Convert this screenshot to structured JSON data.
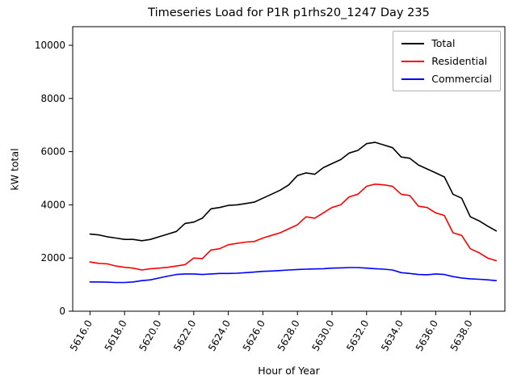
{
  "chart_data": {
    "type": "line",
    "title": "Timeseries Load for P1R p1rhs20_1247  Day 235",
    "xlabel": "Hour of Year",
    "ylabel": "kW total",
    "xlim": [
      5615.0,
      5640.0
    ],
    "ylim": [
      0,
      10700
    ],
    "grid": false,
    "legend_position": "upper right",
    "xticks": [
      5616,
      5618,
      5620,
      5622,
      5624,
      5626,
      5628,
      5630,
      5632,
      5634,
      5636,
      5638
    ],
    "xtick_labels": [
      "5616.0",
      "5618.0",
      "5620.0",
      "5622.0",
      "5624.0",
      "5626.0",
      "5628.0",
      "5630.0",
      "5632.0",
      "5634.0",
      "5636.0",
      "5638.0"
    ],
    "yticks": [
      0,
      2000,
      4000,
      6000,
      8000,
      10000
    ],
    "ytick_labels": [
      "0",
      "2000",
      "4000",
      "6000",
      "8000",
      "10000"
    ],
    "x": [
      5616.0,
      5616.5,
      5617.0,
      5617.5,
      5618.0,
      5618.5,
      5619.0,
      5619.5,
      5620.0,
      5620.5,
      5621.0,
      5621.5,
      5622.0,
      5622.5,
      5623.0,
      5623.5,
      5624.0,
      5624.5,
      5625.0,
      5625.5,
      5626.0,
      5626.5,
      5627.0,
      5627.5,
      5628.0,
      5628.5,
      5629.0,
      5629.5,
      5630.0,
      5630.5,
      5631.0,
      5631.5,
      5632.0,
      5632.5,
      5633.0,
      5633.5,
      5634.0,
      5634.5,
      5635.0,
      5635.5,
      5636.0,
      5636.5,
      5637.0,
      5637.5,
      5638.0,
      5638.5,
      5639.0,
      5639.5
    ],
    "series": [
      {
        "name": "Total",
        "color": "#000000",
        "values": [
          2900,
          2870,
          2800,
          2750,
          2700,
          2700,
          2650,
          2700,
          2800,
          2900,
          3000,
          3300,
          3350,
          3500,
          3850,
          3900,
          3980,
          4000,
          4050,
          4100,
          4250,
          4400,
          4550,
          4750,
          5100,
          5200,
          5150,
          5400,
          5550,
          5700,
          5950,
          6050,
          6300,
          6350,
          6250,
          6150,
          5800,
          5750,
          5500,
          5350,
          5200,
          5050,
          4400,
          4250,
          3550,
          3400,
          3200,
          3020
        ]
      },
      {
        "name": "Residential",
        "color": "#ff0000",
        "values": [
          1850,
          1800,
          1780,
          1700,
          1650,
          1620,
          1550,
          1600,
          1620,
          1650,
          1700,
          1750,
          2000,
          1980,
          2300,
          2350,
          2500,
          2550,
          2600,
          2620,
          2750,
          2850,
          2950,
          3100,
          3250,
          3550,
          3500,
          3700,
          3900,
          4000,
          4300,
          4400,
          4700,
          4780,
          4750,
          4700,
          4400,
          4350,
          3950,
          3900,
          3700,
          3600,
          2950,
          2850,
          2350,
          2200,
          2000,
          1900
        ]
      },
      {
        "name": "Commercial",
        "color": "#0000ff",
        "values": [
          1100,
          1100,
          1090,
          1080,
          1080,
          1100,
          1150,
          1180,
          1250,
          1320,
          1380,
          1400,
          1400,
          1380,
          1400,
          1420,
          1420,
          1430,
          1450,
          1470,
          1500,
          1510,
          1530,
          1550,
          1570,
          1580,
          1590,
          1600,
          1620,
          1630,
          1640,
          1640,
          1620,
          1600,
          1580,
          1550,
          1450,
          1420,
          1380,
          1370,
          1400,
          1380,
          1300,
          1250,
          1220,
          1200,
          1180,
          1150
        ]
      }
    ]
  }
}
